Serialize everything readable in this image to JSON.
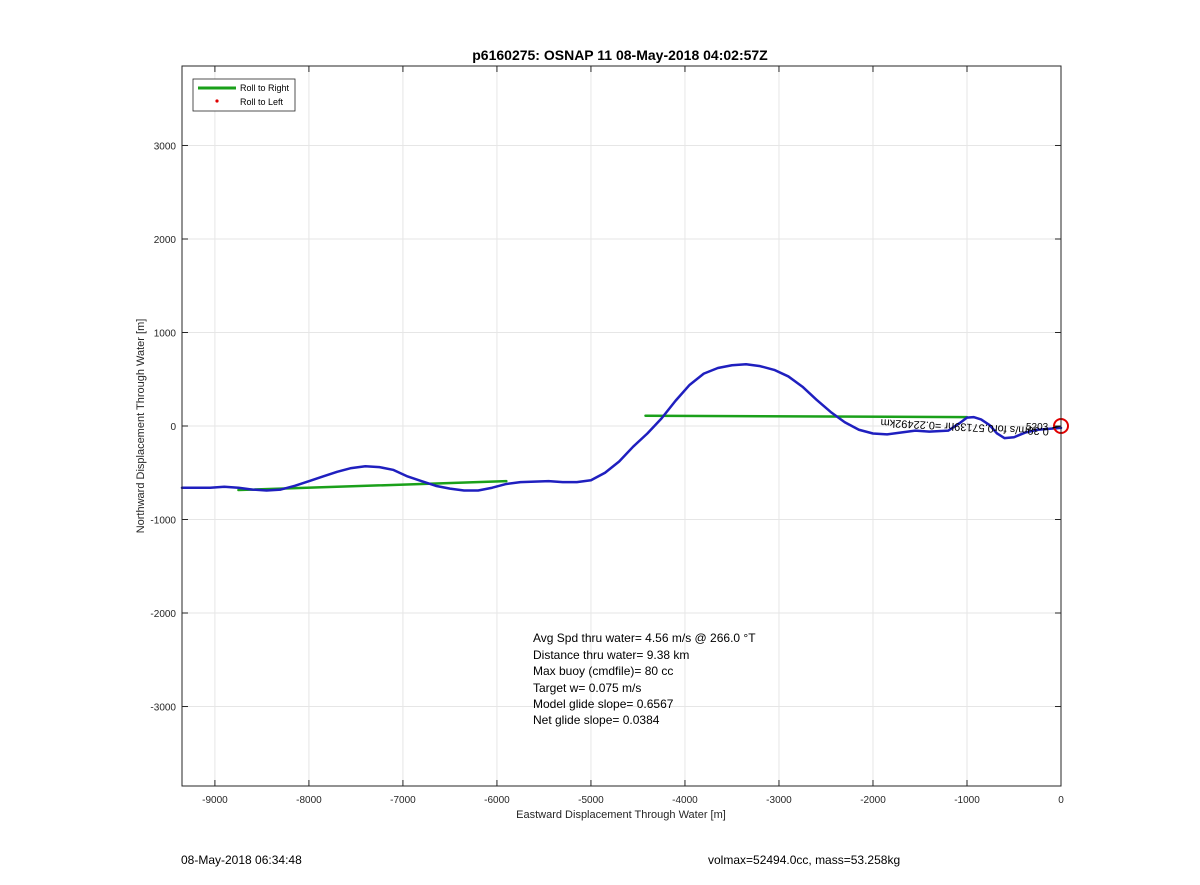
{
  "chart_data": {
    "type": "line",
    "title": "p6160275: OSNAP 11 08-May-2018 04:02:57Z",
    "xlabel": "Eastward Displacement Through Water [m]",
    "ylabel": "Northward Displacement Through Water [m]",
    "xlim": [
      -9350,
      0
    ],
    "ylim": [
      -3850,
      3850
    ],
    "xticks": [
      -9000,
      -8000,
      -7000,
      -6000,
      -5000,
      -4000,
      -3000,
      -2000,
      -1000,
      0
    ],
    "yticks": [
      -3000,
      -2000,
      -1000,
      0,
      1000,
      2000,
      3000
    ],
    "grid": true,
    "legend_position": "top-left",
    "legend": [
      {
        "label": "Roll to Right",
        "color": "#1aa01a",
        "style": "line"
      },
      {
        "label": "Roll to Left",
        "color": "#e00000",
        "style": "dot"
      }
    ],
    "series": [
      {
        "name": "Roll to Right",
        "color": "#1aa01a",
        "segments": [
          [
            [
              -4420,
              110
            ],
            [
              -1000,
              95
            ]
          ],
          [
            [
              -8750,
              -685
            ],
            [
              -5900,
              -590
            ]
          ]
        ]
      },
      {
        "color": "#1f1fbf",
        "x": [
          0,
          -120,
          -250,
          -380,
          -500,
          -600,
          -680,
          -760,
          -850,
          -930,
          -1000,
          -1080,
          -1200,
          -1400,
          -1550,
          -1700,
          -1850,
          -2000,
          -2150,
          -2300,
          -2450,
          -2600,
          -2750,
          -2900,
          -3050,
          -3200,
          -3350,
          -3500,
          -3650,
          -3800,
          -3950,
          -4100,
          -4250,
          -4400,
          -4550,
          -4700,
          -4850,
          -5000,
          -5150,
          -5300,
          -5450,
          -5600,
          -5750,
          -5900,
          -6050,
          -6200,
          -6350,
          -6500,
          -6650,
          -6800,
          -6950,
          -7100,
          -7250,
          -7400,
          -7550,
          -7700,
          -7850,
          -8000,
          -8150,
          -8300,
          -8450,
          -8600,
          -8750,
          -8900,
          -9050,
          -9200,
          -9350
        ],
        "y": [
          -20,
          -30,
          -40,
          -70,
          -120,
          -130,
          -80,
          10,
          70,
          95,
          90,
          30,
          -50,
          -60,
          -50,
          -70,
          -90,
          -80,
          -40,
          40,
          150,
          280,
          420,
          530,
          600,
          640,
          660,
          650,
          620,
          560,
          440,
          270,
          80,
          -80,
          -220,
          -380,
          -500,
          -580,
          -600,
          -600,
          -590,
          -595,
          -600,
          -620,
          -660,
          -690,
          -690,
          -670,
          -640,
          -590,
          -540,
          -470,
          -440,
          -430,
          -450,
          -490,
          -540,
          -590,
          -640,
          -680,
          -690,
          -680,
          -660,
          -650,
          -660,
          -660,
          -660
        ]
      }
    ],
    "annotations": {
      "stats": [
        "Avg Spd thru water=  4.56 m/s @ 266.0 °T",
        "Distance thru water=  9.38 km",
        "Max buoy (cmdfile)= 80 cc",
        "Target w= 0.075 m/s",
        "Model glide slope= 0.6567",
        "Net glide slope= 0.0384"
      ],
      "current_label": "0.39m/s for0.57139hr =0.22492km",
      "marker_label": "5203"
    },
    "end_marker_color": "#e00000"
  },
  "footer": {
    "left": "08-May-2018 06:34:48",
    "right": "volmax=52494.0cc, mass=53.258kg"
  }
}
